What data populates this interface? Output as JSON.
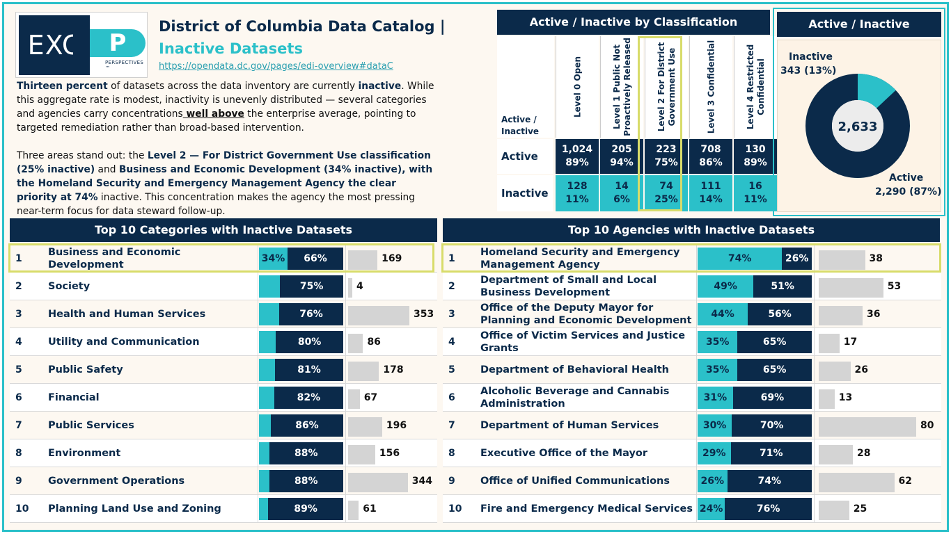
{
  "header": {
    "logo_text": "EXC",
    "logo_mark": "P",
    "logo_sub": "PERSPECTIVES ™",
    "title_line1": "District of Columbia Data Catalog |",
    "title_line2": "Inactive Datasets",
    "link": "https://opendata.dc.gov/pages/edi-overview#dataC"
  },
  "narrative": {
    "p1": [
      {
        "t": "Thirteen percent",
        "s": "b"
      },
      {
        "t": " of datasets across the data inventory are currently ",
        "s": ""
      },
      {
        "t": "inactive",
        "s": "b"
      },
      {
        "t": ". While this aggregate rate is modest, inactivity is unevenly distributed — several categories and agencies carry concentrations",
        "s": ""
      },
      {
        "t": " well above",
        "s": "u"
      },
      {
        "t": " the enterprise average, pointing to targeted remediation rather than broad-based intervention.",
        "s": ""
      }
    ],
    "p2": [
      {
        "t": "Three areas stand out: the ",
        "s": ""
      },
      {
        "t": "Level 2 — For District Government Use classification (25% inactive)",
        "s": "b"
      },
      {
        "t": " and ",
        "s": ""
      },
      {
        "t": "Business and Economic Development (34% inactive), with the Homeland Security and Emergency Management Agency the clear priority at 74%",
        "s": "b"
      },
      {
        "t": " inactive. This concentration makes the agency the most pressing near-term focus for data steward follow-up.",
        "s": ""
      }
    ]
  },
  "matrix": {
    "title": "Active / Inactive by Classification",
    "corner_line1": "Active /",
    "corner_line2": "Inactive",
    "columns": [
      {
        "l1": "Level 0 Open",
        "l2": ""
      },
      {
        "l1": "Level 1 Public Not",
        "l2": "Proactively Released"
      },
      {
        "l1": "Level 2 For District",
        "l2": "Government Use"
      },
      {
        "l1": "Level 3 Confidential",
        "l2": ""
      },
      {
        "l1": "Level 4 Restricted",
        "l2": "Confidential"
      }
    ],
    "active_label": "Active",
    "inactive_label": "Inactive",
    "active": [
      {
        "count": "1,024",
        "pct": "89%"
      },
      {
        "count": "205",
        "pct": "94%"
      },
      {
        "count": "223",
        "pct": "75%"
      },
      {
        "count": "708",
        "pct": "86%"
      },
      {
        "count": "130",
        "pct": "89%"
      }
    ],
    "inactive": [
      {
        "count": "128",
        "pct": "11%"
      },
      {
        "count": "14",
        "pct": "6%"
      },
      {
        "count": "74",
        "pct": "25%"
      },
      {
        "count": "111",
        "pct": "14%"
      },
      {
        "count": "16",
        "pct": "11%"
      }
    ]
  },
  "donut": {
    "title": "Active / Inactive",
    "total": "2,633",
    "inactive_label": "Inactive",
    "inactive_value": "343 (13%)",
    "active_label": "Active",
    "active_value": "2,290 (87%)",
    "inactive_fraction": 0.13,
    "colors": {
      "active": "#0b2a4a",
      "inactive": "#2bc0c9",
      "hole": "#ececec"
    }
  },
  "categories": {
    "title": "Top 10 Categories with Inactive Datasets",
    "count_max": 353,
    "rows": [
      {
        "rank": "1",
        "name": "Business and Economic Development",
        "inactive_pct": 34,
        "inactive_label": "34%",
        "active_label": "66%",
        "count": "169",
        "count_value": 169
      },
      {
        "rank": "2",
        "name": "Society",
        "inactive_pct": 25,
        "inactive_label": "",
        "active_label": "75%",
        "count": "4",
        "count_value": 4
      },
      {
        "rank": "3",
        "name": "Health and Human Services",
        "inactive_pct": 24,
        "inactive_label": "",
        "active_label": "76%",
        "count": "353",
        "count_value": 353
      },
      {
        "rank": "4",
        "name": "Utility and Communication",
        "inactive_pct": 20,
        "inactive_label": "",
        "active_label": "80%",
        "count": "86",
        "count_value": 86
      },
      {
        "rank": "5",
        "name": "Public Safety",
        "inactive_pct": 19,
        "inactive_label": "",
        "active_label": "81%",
        "count": "178",
        "count_value": 178
      },
      {
        "rank": "6",
        "name": "Financial",
        "inactive_pct": 18,
        "inactive_label": "",
        "active_label": "82%",
        "count": "67",
        "count_value": 67
      },
      {
        "rank": "7",
        "name": "Public Services",
        "inactive_pct": 14,
        "inactive_label": "",
        "active_label": "86%",
        "count": "196",
        "count_value": 196
      },
      {
        "rank": "8",
        "name": "Environment",
        "inactive_pct": 12,
        "inactive_label": "",
        "active_label": "88%",
        "count": "156",
        "count_value": 156
      },
      {
        "rank": "9",
        "name": "Government Operations",
        "inactive_pct": 12,
        "inactive_label": "",
        "active_label": "88%",
        "count": "344",
        "count_value": 344
      },
      {
        "rank": "10",
        "name": "Planning Land Use and Zoning",
        "inactive_pct": 11,
        "inactive_label": "",
        "active_label": "89%",
        "count": "61",
        "count_value": 61
      }
    ]
  },
  "agencies": {
    "title": "Top 10 Agencies with Inactive Datasets",
    "count_max": 80,
    "rows": [
      {
        "rank": "1",
        "name": "Homeland Security and Emergency Management Agency",
        "inactive_pct": 74,
        "inactive_label": "74%",
        "active_label": "26%",
        "count": "38",
        "count_value": 38
      },
      {
        "rank": "2",
        "name": "Department of Small and Local Business Development",
        "inactive_pct": 49,
        "inactive_label": "49%",
        "active_label": "51%",
        "count": "53",
        "count_value": 53
      },
      {
        "rank": "3",
        "name": "Office of the Deputy Mayor for Planning and Economic Development",
        "inactive_pct": 44,
        "inactive_label": "44%",
        "active_label": "56%",
        "count": "36",
        "count_value": 36
      },
      {
        "rank": "4",
        "name": "Office of Victim Services and Justice Grants",
        "inactive_pct": 35,
        "inactive_label": "35%",
        "active_label": "65%",
        "count": "17",
        "count_value": 17
      },
      {
        "rank": "5",
        "name": "Department of Behavioral Health",
        "inactive_pct": 35,
        "inactive_label": "35%",
        "active_label": "65%",
        "count": "26",
        "count_value": 26
      },
      {
        "rank": "6",
        "name": "Alcoholic Beverage and Cannabis Administration",
        "inactive_pct": 31,
        "inactive_label": "31%",
        "active_label": "69%",
        "count": "13",
        "count_value": 13
      },
      {
        "rank": "7",
        "name": "Department of Human Services",
        "inactive_pct": 30,
        "inactive_label": "30%",
        "active_label": "70%",
        "count": "80",
        "count_value": 80
      },
      {
        "rank": "8",
        "name": "Executive Office of the Mayor",
        "inactive_pct": 29,
        "inactive_label": "29%",
        "active_label": "71%",
        "count": "28",
        "count_value": 28
      },
      {
        "rank": "9",
        "name": "Office of Unified Communications",
        "inactive_pct": 26,
        "inactive_label": "26%",
        "active_label": "74%",
        "count": "62",
        "count_value": 62
      },
      {
        "rank": "10",
        "name": "Fire and Emergency Medical Services",
        "inactive_pct": 24,
        "inactive_label": "24%",
        "active_label": "76%",
        "count": "25",
        "count_value": 25
      }
    ]
  }
}
